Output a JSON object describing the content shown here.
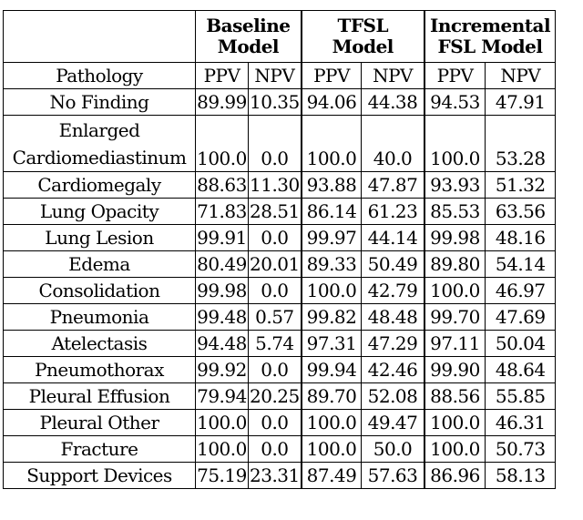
{
  "table": {
    "header_groups": [
      {
        "line1": "Baseline",
        "line2": "Model"
      },
      {
        "line1": "TFSL",
        "line2": "Model"
      },
      {
        "line1": "Incremental",
        "line2": "FSL Model"
      }
    ],
    "sub_header": {
      "pathology": "Pathology",
      "cols": [
        "PPV",
        "NPV",
        "PPV",
        "NPV",
        "PPV",
        "NPV"
      ]
    },
    "rows": [
      {
        "name": "No Finding",
        "values": [
          "89.99",
          "10.35",
          "94.06",
          "44.38",
          "94.53",
          "47.91"
        ],
        "bold": [
          false,
          false,
          false,
          false,
          true,
          true
        ]
      },
      {
        "name_line1": "Enlarged",
        "name_line2": "Cardiomediastinum",
        "values": [
          "100.0",
          "0.0",
          "100.0",
          "40.0",
          "100.0",
          "53.28"
        ],
        "bold": [
          false,
          false,
          false,
          false,
          false,
          true
        ]
      },
      {
        "name": "Cardiomegaly",
        "values": [
          "88.63",
          "11.30",
          "93.88",
          "47.87",
          "93.93",
          "51.32"
        ],
        "bold": [
          false,
          false,
          false,
          false,
          true,
          true
        ]
      },
      {
        "name": "Lung Opacity",
        "values": [
          "71.83",
          "28.51",
          "86.14",
          "61.23",
          "85.53",
          "63.56"
        ],
        "bold": [
          false,
          false,
          true,
          false,
          false,
          true
        ]
      },
      {
        "name": "Lung Lesion",
        "values": [
          "99.91",
          "0.0",
          "99.97",
          "44.14",
          "99.98",
          "48.16"
        ],
        "bold": [
          false,
          false,
          false,
          false,
          false,
          true
        ]
      },
      {
        "name": "Edema",
        "values": [
          "80.49",
          "20.01",
          "89.33",
          "50.49",
          "89.80",
          "54.14"
        ],
        "bold": [
          false,
          false,
          false,
          false,
          true,
          true
        ]
      },
      {
        "name": "Consolidation",
        "values": [
          "99.98",
          "0.0",
          "100.0",
          "42.79",
          "100.0",
          "46.97"
        ],
        "bold": [
          false,
          false,
          false,
          false,
          false,
          true
        ]
      },
      {
        "name": "Pneumonia",
        "values": [
          "99.48",
          "0.57",
          "99.82",
          "48.48",
          "99.70",
          "47.69"
        ],
        "bold": [
          false,
          false,
          true,
          true,
          false,
          false
        ]
      },
      {
        "name": "Atelectasis",
        "values": [
          "94.48",
          "5.74",
          "97.31",
          "47.29",
          "97.11",
          "50.04"
        ],
        "bold": [
          false,
          false,
          true,
          false,
          false,
          true
        ]
      },
      {
        "name": "Pneumothorax",
        "values": [
          "99.92",
          "0.0",
          "99.94",
          "42.46",
          "99.90",
          "48.64"
        ],
        "bold": [
          false,
          false,
          true,
          false,
          false,
          true
        ]
      },
      {
        "name": "Pleural Effusion",
        "values": [
          "79.94",
          "20.25",
          "89.70",
          "52.08",
          "88.56",
          "55.85"
        ],
        "bold": [
          false,
          false,
          true,
          false,
          false,
          true
        ]
      },
      {
        "name": "Pleural Other",
        "values": [
          "100.0",
          "0.0",
          "100.0",
          "49.47",
          "100.0",
          "46.31"
        ],
        "bold": [
          false,
          false,
          false,
          true,
          false,
          false
        ]
      },
      {
        "name": "Fracture",
        "values": [
          "100.0",
          "0.0",
          "100.0",
          "50.0",
          "100.0",
          "50.73"
        ],
        "bold": [
          false,
          false,
          false,
          false,
          false,
          true
        ]
      },
      {
        "name": "Support Devices",
        "values": [
          "75.19",
          "23.31",
          "87.49",
          "57.63",
          "86.96",
          "58.13"
        ],
        "bold": [
          false,
          false,
          true,
          false,
          false,
          true
        ]
      }
    ]
  }
}
